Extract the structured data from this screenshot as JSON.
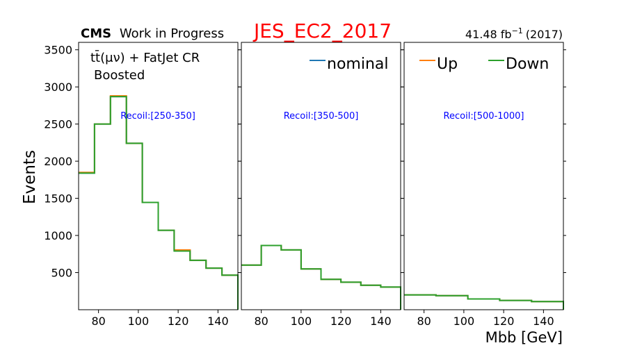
{
  "header": {
    "cms_bold": "CMS",
    "cms_rest": "Work in Progress",
    "title": "JES_EC2_2017",
    "lumi_value": "41.48 fb",
    "lumi_exp": "−1",
    "lumi_year": "(2017)"
  },
  "region": {
    "line1": "tt̄(μν) + FatJet CR",
    "line2": "Boosted"
  },
  "colors": {
    "nominal": "#1f77b4",
    "up": "#ff7f0e",
    "down": "#2ca02c",
    "title": "#ff0000",
    "recoil_text": "#0000ff"
  },
  "chart_data": {
    "type": "line",
    "drawstyle": "step",
    "ylabel": "Events",
    "xlabel": "Mbb [GeV]",
    "xlim": [
      70,
      150
    ],
    "ylim": [
      0,
      3600
    ],
    "y_ticks": [
      500,
      1000,
      1500,
      2000,
      2500,
      3000,
      3500
    ],
    "x_ticks": [
      80,
      100,
      120,
      140
    ],
    "legend": [
      {
        "key": "nominal",
        "label": "nominal",
        "panel": 1
      },
      {
        "key": "up",
        "label": "Up",
        "panel": 2
      },
      {
        "key": "down",
        "label": "Down",
        "panel": 2
      }
    ],
    "panels": [
      {
        "label": "Recoil:[250-350]",
        "bin_edges": [
          70,
          78,
          86,
          94,
          102,
          110,
          118,
          126,
          134,
          142,
          150
        ],
        "series": [
          {
            "name": "nominal",
            "key": "nominal",
            "values": [
              1840,
              2500,
              2870,
              2240,
              1445,
              1070,
              800,
              665,
              560,
              465
            ]
          },
          {
            "name": "Up",
            "key": "up",
            "values": [
              1850,
              2500,
              2880,
              2240,
              1445,
              1070,
              805,
              665,
              560,
              465
            ]
          },
          {
            "name": "Down",
            "key": "down",
            "values": [
              1840,
              2500,
              2870,
              2240,
              1445,
              1070,
              790,
              665,
              560,
              465
            ]
          }
        ]
      },
      {
        "label": "Recoil:[350-500]",
        "bin_edges": [
          70,
          80,
          90,
          100,
          110,
          120,
          130,
          140,
          150
        ],
        "series": [
          {
            "name": "nominal",
            "key": "nominal",
            "values": [
              600,
              865,
              805,
              550,
              410,
              370,
              330,
              305
            ]
          },
          {
            "name": "Up",
            "key": "up",
            "values": [
              600,
              865,
              805,
              550,
              410,
              370,
              330,
              305
            ]
          },
          {
            "name": "Down",
            "key": "down",
            "values": [
              600,
              865,
              805,
              550,
              410,
              370,
              330,
              305
            ]
          }
        ]
      },
      {
        "label": "Recoil:[500-1000]",
        "bin_edges": [
          70,
          86,
          102,
          118,
          134,
          150
        ],
        "series": [
          {
            "name": "nominal",
            "key": "nominal",
            "values": [
              200,
              190,
              145,
              125,
              110
            ]
          },
          {
            "name": "Up",
            "key": "up",
            "values": [
              200,
              190,
              145,
              125,
              110
            ]
          },
          {
            "name": "Down",
            "key": "down",
            "values": [
              200,
              190,
              145,
              125,
              110
            ]
          }
        ]
      }
    ]
  }
}
